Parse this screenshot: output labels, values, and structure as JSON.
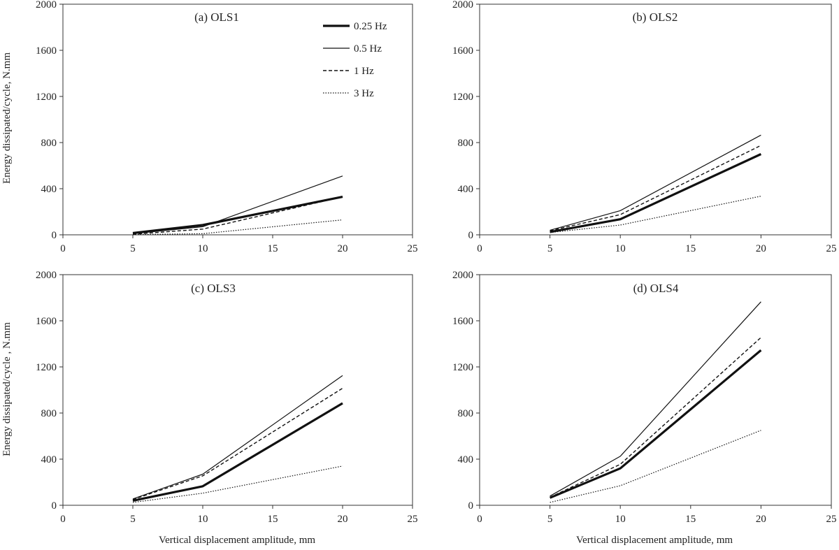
{
  "figure": {
    "x_axis_label": "Vertical displacement amplitude, mm",
    "y_axis_label_top": "Energy dissipated/cycle,  N.mm",
    "y_axis_label_bottom": "Energy dissipated/cycle  , N.mm"
  },
  "legend": {
    "entries": [
      "0.25 Hz",
      "0.5 Hz",
      "1 Hz",
      "3 Hz"
    ]
  },
  "chart_data": [
    {
      "type": "line",
      "title": "(a) OLS1",
      "x": [
        5,
        10,
        20
      ],
      "xlim": [
        0,
        25
      ],
      "ylim": [
        0,
        2000
      ],
      "xticks": [
        "0",
        "5",
        "10",
        "15",
        "20",
        "25"
      ],
      "yticks": [
        "0",
        "400",
        "800",
        "1200",
        "1600",
        "2000"
      ],
      "series": [
        {
          "name": "0.25 Hz",
          "style": "thick",
          "values": [
            15,
            85,
            330
          ]
        },
        {
          "name": "0.5 Hz",
          "style": "thin",
          "values": [
            10,
            70,
            510
          ]
        },
        {
          "name": "1 Hz",
          "style": "dashed",
          "values": [
            5,
            50,
            330
          ]
        },
        {
          "name": "3 Hz",
          "style": "dotted",
          "values": [
            2,
            10,
            130
          ]
        }
      ]
    },
    {
      "type": "line",
      "title": "(b) OLS2",
      "x": [
        5,
        10,
        20
      ],
      "xlim": [
        0,
        25
      ],
      "ylim": [
        0,
        2000
      ],
      "xticks": [
        "0",
        "5",
        "10",
        "15",
        "20",
        "25"
      ],
      "yticks": [
        "0",
        "400",
        "800",
        "1200",
        "1600",
        "2000"
      ],
      "series": [
        {
          "name": "0.25 Hz",
          "style": "thick",
          "values": [
            25,
            135,
            700
          ]
        },
        {
          "name": "0.5 Hz",
          "style": "thin",
          "values": [
            40,
            210,
            865
          ]
        },
        {
          "name": "1 Hz",
          "style": "dashed",
          "values": [
            35,
            175,
            775
          ]
        },
        {
          "name": "3 Hz",
          "style": "dotted",
          "values": [
            20,
            85,
            335
          ]
        }
      ]
    },
    {
      "type": "line",
      "title": "(c) OLS3",
      "x": [
        5,
        10,
        20
      ],
      "xlim": [
        0,
        25
      ],
      "ylim": [
        0,
        2000
      ],
      "xticks": [
        "0",
        "5",
        "10",
        "15",
        "20",
        "25"
      ],
      "yticks": [
        "0",
        "400",
        "800",
        "1200",
        "1600",
        "2000"
      ],
      "series": [
        {
          "name": "0.25 Hz",
          "style": "thick",
          "values": [
            40,
            165,
            885
          ]
        },
        {
          "name": "0.5 Hz",
          "style": "thin",
          "values": [
            55,
            270,
            1125
          ]
        },
        {
          "name": "1 Hz",
          "style": "dashed",
          "values": [
            50,
            255,
            1015
          ]
        },
        {
          "name": "3 Hz",
          "style": "dotted",
          "values": [
            25,
            105,
            340
          ]
        }
      ]
    },
    {
      "type": "line",
      "title": "(d) OLS4",
      "x": [
        5,
        10,
        20
      ],
      "xlim": [
        0,
        25
      ],
      "ylim": [
        0,
        2000
      ],
      "xticks": [
        "0",
        "5",
        "10",
        "15",
        "20",
        "25"
      ],
      "yticks": [
        "0",
        "400",
        "800",
        "1200",
        "1600",
        "2000"
      ],
      "series": [
        {
          "name": "0.25 Hz",
          "style": "thick",
          "values": [
            65,
            320,
            1345
          ]
        },
        {
          "name": "0.5 Hz",
          "style": "thin",
          "values": [
            80,
            425,
            1765
          ]
        },
        {
          "name": "1 Hz",
          "style": "dashed",
          "values": [
            70,
            355,
            1455
          ]
        },
        {
          "name": "3 Hz",
          "style": "dotted",
          "values": [
            25,
            170,
            650
          ]
        }
      ]
    }
  ]
}
